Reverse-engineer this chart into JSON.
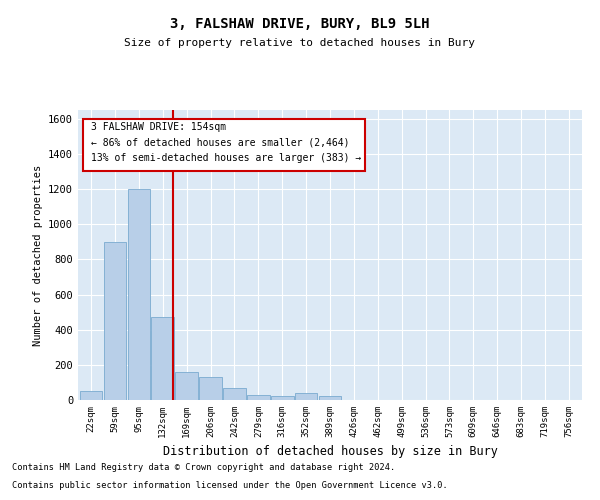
{
  "title": "3, FALSHAW DRIVE, BURY, BL9 5LH",
  "subtitle": "Size of property relative to detached houses in Bury",
  "xlabel": "Distribution of detached houses by size in Bury",
  "ylabel": "Number of detached properties",
  "footer1": "Contains HM Land Registry data © Crown copyright and database right 2024.",
  "footer2": "Contains public sector information licensed under the Open Government Licence v3.0.",
  "property_label": "3 FALSHAW DRIVE: 154sqm",
  "annotation_line1": "← 86% of detached houses are smaller (2,464)",
  "annotation_line2": "13% of semi-detached houses are larger (383) →",
  "bar_color": "#b8cfe8",
  "bar_edge_color": "#7aaad0",
  "vline_color": "#cc0000",
  "annotation_box_edge_color": "#cc0000",
  "background_color": "#dce9f5",
  "grid_color": "#ffffff",
  "categories": [
    "22sqm",
    "59sqm",
    "95sqm",
    "132sqm",
    "169sqm",
    "206sqm",
    "242sqm",
    "279sqm",
    "316sqm",
    "352sqm",
    "389sqm",
    "426sqm",
    "462sqm",
    "499sqm",
    "536sqm",
    "573sqm",
    "609sqm",
    "646sqm",
    "683sqm",
    "719sqm",
    "756sqm"
  ],
  "values": [
    50,
    900,
    1200,
    470,
    160,
    130,
    70,
    30,
    25,
    40,
    25,
    0,
    0,
    0,
    0,
    0,
    0,
    0,
    0,
    0,
    0
  ],
  "ylim": [
    0,
    1650
  ],
  "yticks": [
    0,
    200,
    400,
    600,
    800,
    1000,
    1200,
    1400,
    1600
  ],
  "vline_x_index": 3.42
}
